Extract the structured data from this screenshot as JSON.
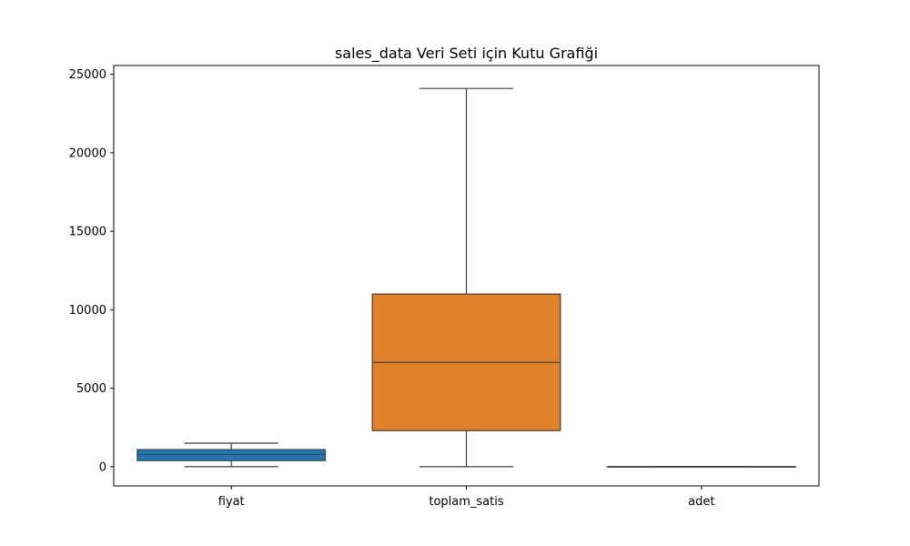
{
  "chart_data": {
    "type": "box",
    "title": "sales_data Veri Seti için Kutu Grafiği",
    "xlabel": "",
    "ylabel": "",
    "ylim": [
      -1225,
      25560
    ],
    "yticks": [
      0,
      5000,
      10000,
      15000,
      20000,
      25000
    ],
    "grid": false,
    "categories": [
      "fiyat",
      "toplam_satis",
      "adet"
    ],
    "boxes": [
      {
        "category": "fiyat",
        "whisker_low": 0,
        "q1": 390,
        "median": 780,
        "q3": 1090,
        "whisker_high": 1500,
        "color": "#1f77b4"
      },
      {
        "category": "toplam_satis",
        "whisker_low": 0,
        "q1": 2300,
        "median": 6650,
        "q3": 11000,
        "whisker_high": 24100,
        "color": "#e1812c"
      },
      {
        "category": "adet",
        "whisker_low": 0,
        "q1": 0,
        "median": 2,
        "q3": 5,
        "whisker_high": 10,
        "color": "#3a923a"
      }
    ]
  }
}
